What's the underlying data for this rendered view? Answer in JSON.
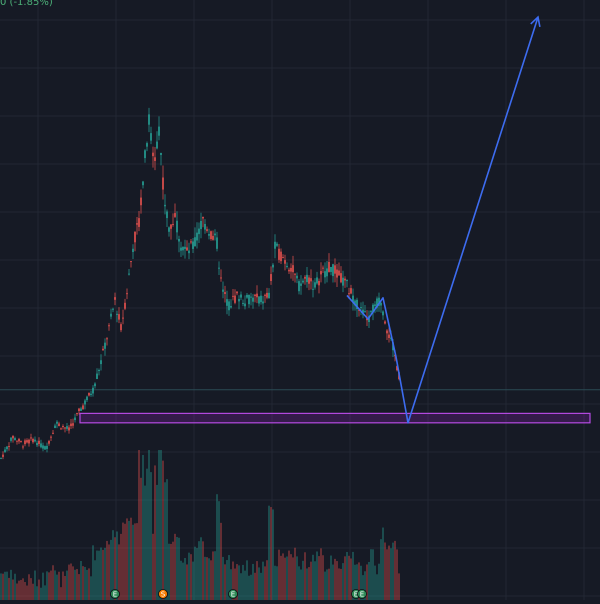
{
  "header": {
    "change_readout": "0 (-1.85%)"
  },
  "colors": {
    "background": "#161a25",
    "grid": "#222733",
    "up": "#26a69a",
    "down": "#ef5350",
    "price_line": "#2a4a55",
    "zone_fill": "#7b1fa2",
    "zone_border": "#b44ae0",
    "path": "#3d6cf0"
  },
  "chart_data": {
    "type": "candlestick",
    "title": "",
    "xlabel": "",
    "ylabel": "",
    "price_scale": "hidden",
    "grid": true,
    "price_series": [
      {
        "t": 0,
        "p": 0.05
      },
      {
        "t": 12,
        "p": 0.14
      },
      {
        "t": 22,
        "p": 0.11
      },
      {
        "t": 32,
        "p": 0.13
      },
      {
        "t": 45,
        "p": 0.09
      },
      {
        "t": 55,
        "p": 0.2
      },
      {
        "t": 68,
        "p": 0.17
      },
      {
        "t": 80,
        "p": 0.26
      },
      {
        "t": 92,
        "p": 0.34
      },
      {
        "t": 100,
        "p": 0.46
      },
      {
        "t": 108,
        "p": 0.6
      },
      {
        "t": 114,
        "p": 0.72
      },
      {
        "t": 120,
        "p": 0.6
      },
      {
        "t": 126,
        "p": 0.76
      },
      {
        "t": 132,
        "p": 0.95
      },
      {
        "t": 138,
        "p": 1.06
      },
      {
        "t": 143,
        "p": 1.28
      },
      {
        "t": 148,
        "p": 1.48
      },
      {
        "t": 153,
        "p": 1.3
      },
      {
        "t": 158,
        "p": 1.46
      },
      {
        "t": 163,
        "p": 1.16
      },
      {
        "t": 168,
        "p": 1.02
      },
      {
        "t": 174,
        "p": 1.08
      },
      {
        "t": 180,
        "p": 0.96
      },
      {
        "t": 186,
        "p": 0.92
      },
      {
        "t": 194,
        "p": 0.96
      },
      {
        "t": 202,
        "p": 1.06
      },
      {
        "t": 210,
        "p": 1.0
      },
      {
        "t": 216,
        "p": 0.96
      },
      {
        "t": 221,
        "p": 0.76
      },
      {
        "t": 228,
        "p": 0.7
      },
      {
        "t": 236,
        "p": 0.74
      },
      {
        "t": 244,
        "p": 0.72
      },
      {
        "t": 252,
        "p": 0.73
      },
      {
        "t": 260,
        "p": 0.72
      },
      {
        "t": 268,
        "p": 0.74
      },
      {
        "t": 274,
        "p": 0.94
      },
      {
        "t": 282,
        "p": 0.9
      },
      {
        "t": 290,
        "p": 0.86
      },
      {
        "t": 298,
        "p": 0.78
      },
      {
        "t": 306,
        "p": 0.82
      },
      {
        "t": 314,
        "p": 0.78
      },
      {
        "t": 322,
        "p": 0.84
      },
      {
        "t": 330,
        "p": 0.86
      },
      {
        "t": 338,
        "p": 0.82
      },
      {
        "t": 346,
        "p": 0.78
      },
      {
        "t": 354,
        "p": 0.72
      },
      {
        "t": 362,
        "p": 0.66
      },
      {
        "t": 368,
        "p": 0.64
      },
      {
        "t": 374,
        "p": 0.7
      },
      {
        "t": 380,
        "p": 0.72
      },
      {
        "t": 386,
        "p": 0.6
      },
      {
        "t": 392,
        "p": 0.52
      },
      {
        "t": 398,
        "p": 0.4
      }
    ],
    "current_price": 0.34,
    "support_zone": {
      "t_start": 80,
      "t_end": 590,
      "p_low": 0.2,
      "p_high": 0.24
    },
    "projection_path": [
      {
        "t": 347,
        "p": 0.74
      },
      {
        "t": 368,
        "p": 0.64
      },
      {
        "t": 383,
        "p": 0.73
      },
      {
        "t": 396,
        "p": 0.48
      },
      {
        "t": 408,
        "p": 0.2
      },
      {
        "t": 538,
        "p": 1.92
      }
    ],
    "event_markers": [
      {
        "t": 115,
        "label": "E",
        "color": "#2e8b57"
      },
      {
        "t": 163,
        "label": "S",
        "color": "#f57c00"
      },
      {
        "t": 233,
        "label": "E",
        "color": "#2e8b57"
      },
      {
        "t": 356,
        "label": "E",
        "color": "#2e8b57"
      },
      {
        "t": 362,
        "label": "E",
        "color": "#2e8b57"
      }
    ]
  }
}
